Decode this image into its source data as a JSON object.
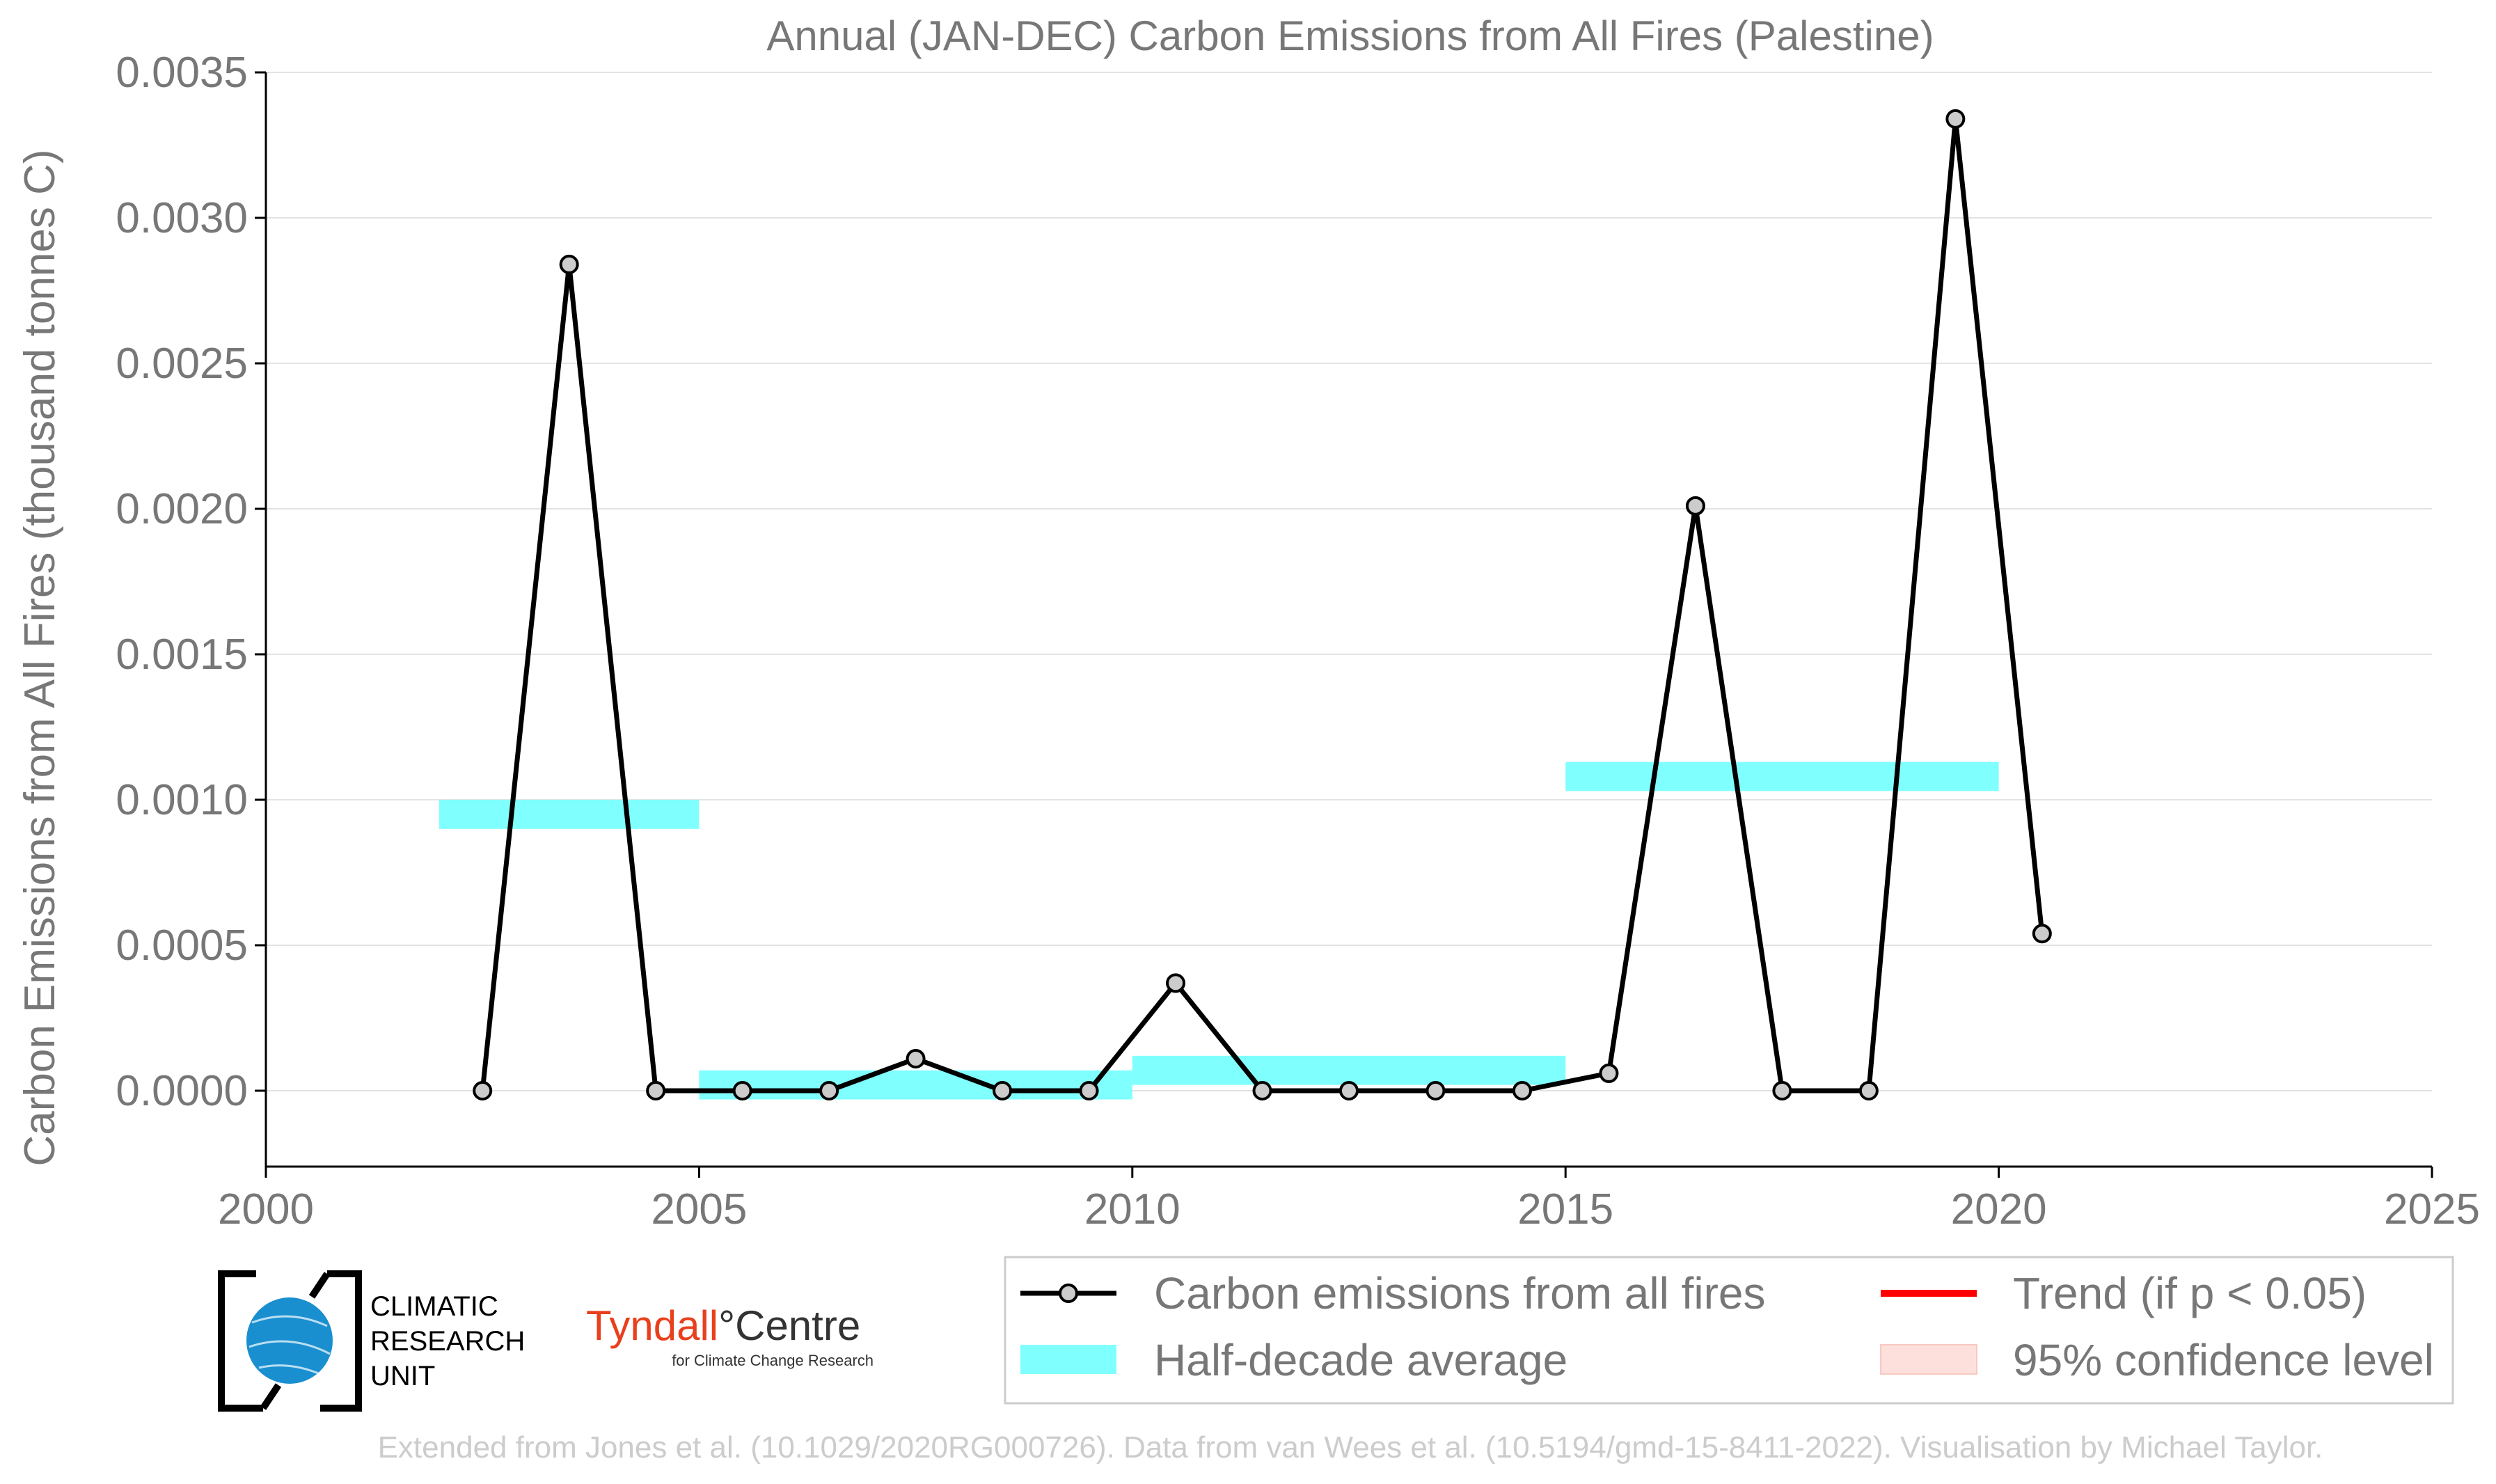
{
  "chart_data": {
    "type": "line",
    "title": "Annual (JAN-DEC) Carbon Emissions from All Fires (Palestine)",
    "xlabel": "",
    "ylabel": "Carbon Emissions from All Fires (thousand tonnes C)",
    "xlim": [
      2000,
      2025
    ],
    "ylim": [
      -0.00026,
      0.0035
    ],
    "x_ticks": [
      "2000",
      "2005",
      "2010",
      "2015",
      "2020",
      "2025"
    ],
    "y_ticks": [
      "0.0000",
      "0.0005",
      "0.0010",
      "0.0015",
      "0.0020",
      "0.0025",
      "0.0030",
      "0.0035"
    ],
    "grid": "horizontal",
    "series": [
      {
        "name": "Carbon emissions from all fires",
        "color": "#000000",
        "marker_fill": "#cccccc",
        "x": [
          2002.5,
          2003.5,
          2004.5,
          2005.5,
          2006.5,
          2007.5,
          2008.5,
          2009.5,
          2010.5,
          2011.5,
          2012.5,
          2013.5,
          2014.5,
          2015.5,
          2016.5,
          2017.5,
          2018.5,
          2019.5,
          2020.5
        ],
        "y": [
          0.0,
          0.00284,
          0.0,
          0.0,
          0.0,
          0.00011,
          0.0,
          0.0,
          0.00037,
          0.0,
          0.0,
          0.0,
          0.0,
          6e-05,
          0.00201,
          0.0,
          0.0,
          0.00334,
          0.00054
        ]
      }
    ],
    "half_decade_average": {
      "name": "Half-decade average",
      "color": "#80ffff",
      "segments": [
        {
          "x0": 2002,
          "x1": 2005,
          "y": 0.00095
        },
        {
          "x0": 2005,
          "x1": 2010,
          "y": 2e-05
        },
        {
          "x0": 2010,
          "x1": 2015,
          "y": 7e-05
        },
        {
          "x0": 2015,
          "x1": 2020,
          "y": 0.00108
        }
      ]
    },
    "legend": {
      "position": "bottom-right",
      "items": [
        {
          "label": "Carbon emissions from all fires",
          "kind": "line-marker",
          "color": "#000000"
        },
        {
          "label": "Trend (if p < 0.05)",
          "kind": "line",
          "color": "#ff0000"
        },
        {
          "label": "Half-decade average",
          "kind": "patch",
          "color": "#80ffff"
        },
        {
          "label": "95% confidence level",
          "kind": "patch",
          "color": "#fde0dc"
        }
      ]
    }
  },
  "logos": {
    "cru_lines": [
      "CLIMATIC",
      "RESEARCH",
      "UNIT"
    ],
    "tyndall_main_a": "Tyndall",
    "tyndall_degree": "°",
    "tyndall_main_b": "Centre",
    "tyndall_sub": "for Climate Change Research",
    "cru_color": "#1a8fd0",
    "tyndall_color": "#e8401c"
  },
  "footer": "Extended from Jones et al. (10.1029/2020RG000726). Data from van Wees et al. (10.5194/gmd-15-8411-2022). Visualisation by Michael Taylor."
}
